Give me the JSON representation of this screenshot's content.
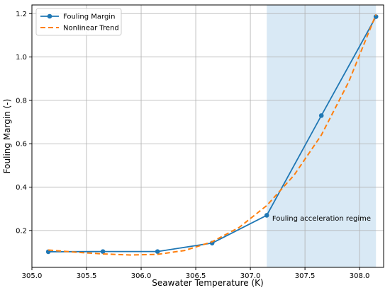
{
  "chart_data": {
    "type": "line",
    "title": "",
    "xlabel": "Seawater Temperature (K)",
    "ylabel": "Fouling Margin (-)",
    "xlim": [
      305.0,
      308.22
    ],
    "ylim": [
      0.03,
      1.24
    ],
    "xticks": [
      305.0,
      305.5,
      306.0,
      306.5,
      307.0,
      307.5,
      308.0
    ],
    "xtick_labels": [
      "305.0",
      "305.5",
      "306.0",
      "306.5",
      "307.0",
      "307.5",
      "308.0"
    ],
    "yticks": [
      0.2,
      0.4,
      0.6,
      0.8,
      1.0,
      1.2
    ],
    "ytick_labels": [
      "0.2",
      "0.4",
      "0.6",
      "0.8",
      "1.0",
      "1.2"
    ],
    "grid": true,
    "legend_position": "top-left",
    "series": [
      {
        "name": "Fouling Margin",
        "style": "solid-markers",
        "color": "#1f77b4",
        "x": [
          305.15,
          305.65,
          306.15,
          306.65,
          307.15,
          307.65,
          308.15
        ],
        "y": [
          0.102,
          0.103,
          0.103,
          0.142,
          0.27,
          0.73,
          1.186
        ]
      },
      {
        "name": "Nonlinear Trend",
        "style": "dashed",
        "color": "#ff7f0e",
        "x": [
          305.15,
          305.4,
          305.65,
          305.9,
          306.15,
          306.4,
          306.65,
          306.9,
          307.15,
          307.4,
          307.65,
          307.9,
          308.15
        ],
        "y": [
          0.11,
          0.1,
          0.092,
          0.087,
          0.09,
          0.108,
          0.148,
          0.215,
          0.315,
          0.455,
          0.64,
          0.885,
          1.196
        ]
      }
    ],
    "shaded_region": {
      "x_range": [
        307.15,
        308.15
      ],
      "color": "#d9e9f5"
    },
    "annotations": [
      {
        "text": "Fouling acceleration regime",
        "x": 307.2,
        "y": 0.245
      }
    ]
  }
}
